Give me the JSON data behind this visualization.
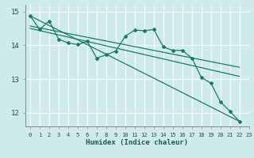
{
  "xlabel": "Humidex (Indice chaleur)",
  "xlim": [
    -0.5,
    23
  ],
  "ylim": [
    11.6,
    15.2
  ],
  "yticks": [
    12,
    13,
    14,
    15
  ],
  "xticks": [
    0,
    1,
    2,
    3,
    4,
    5,
    6,
    7,
    8,
    9,
    10,
    11,
    12,
    13,
    14,
    15,
    16,
    17,
    18,
    19,
    20,
    21,
    22,
    23
  ],
  "bg_color": "#ceeaea",
  "grid_color": "#b8d8d8",
  "line_color": "#1a7a6a",
  "wiggly_x": [
    0,
    1,
    2,
    3,
    4,
    5,
    6,
    7,
    8,
    9,
    10,
    11,
    12,
    13,
    14,
    15,
    16,
    17,
    18,
    19,
    20,
    21,
    22
  ],
  "wiggly_y": [
    14.87,
    14.47,
    14.72,
    14.18,
    14.07,
    14.02,
    14.12,
    13.62,
    13.72,
    13.83,
    14.27,
    14.45,
    14.43,
    14.47,
    13.95,
    13.85,
    13.85,
    13.62,
    13.05,
    12.88,
    12.33,
    12.05,
    11.75
  ],
  "steep_line_x": [
    0,
    22
  ],
  "steep_line_y": [
    14.87,
    11.75
  ],
  "trend1_x": [
    0,
    22
  ],
  "trend1_y": [
    14.47,
    13.05
  ],
  "trend2_x": [
    1,
    22
  ],
  "trend2_y": [
    14.47,
    13.35
  ]
}
